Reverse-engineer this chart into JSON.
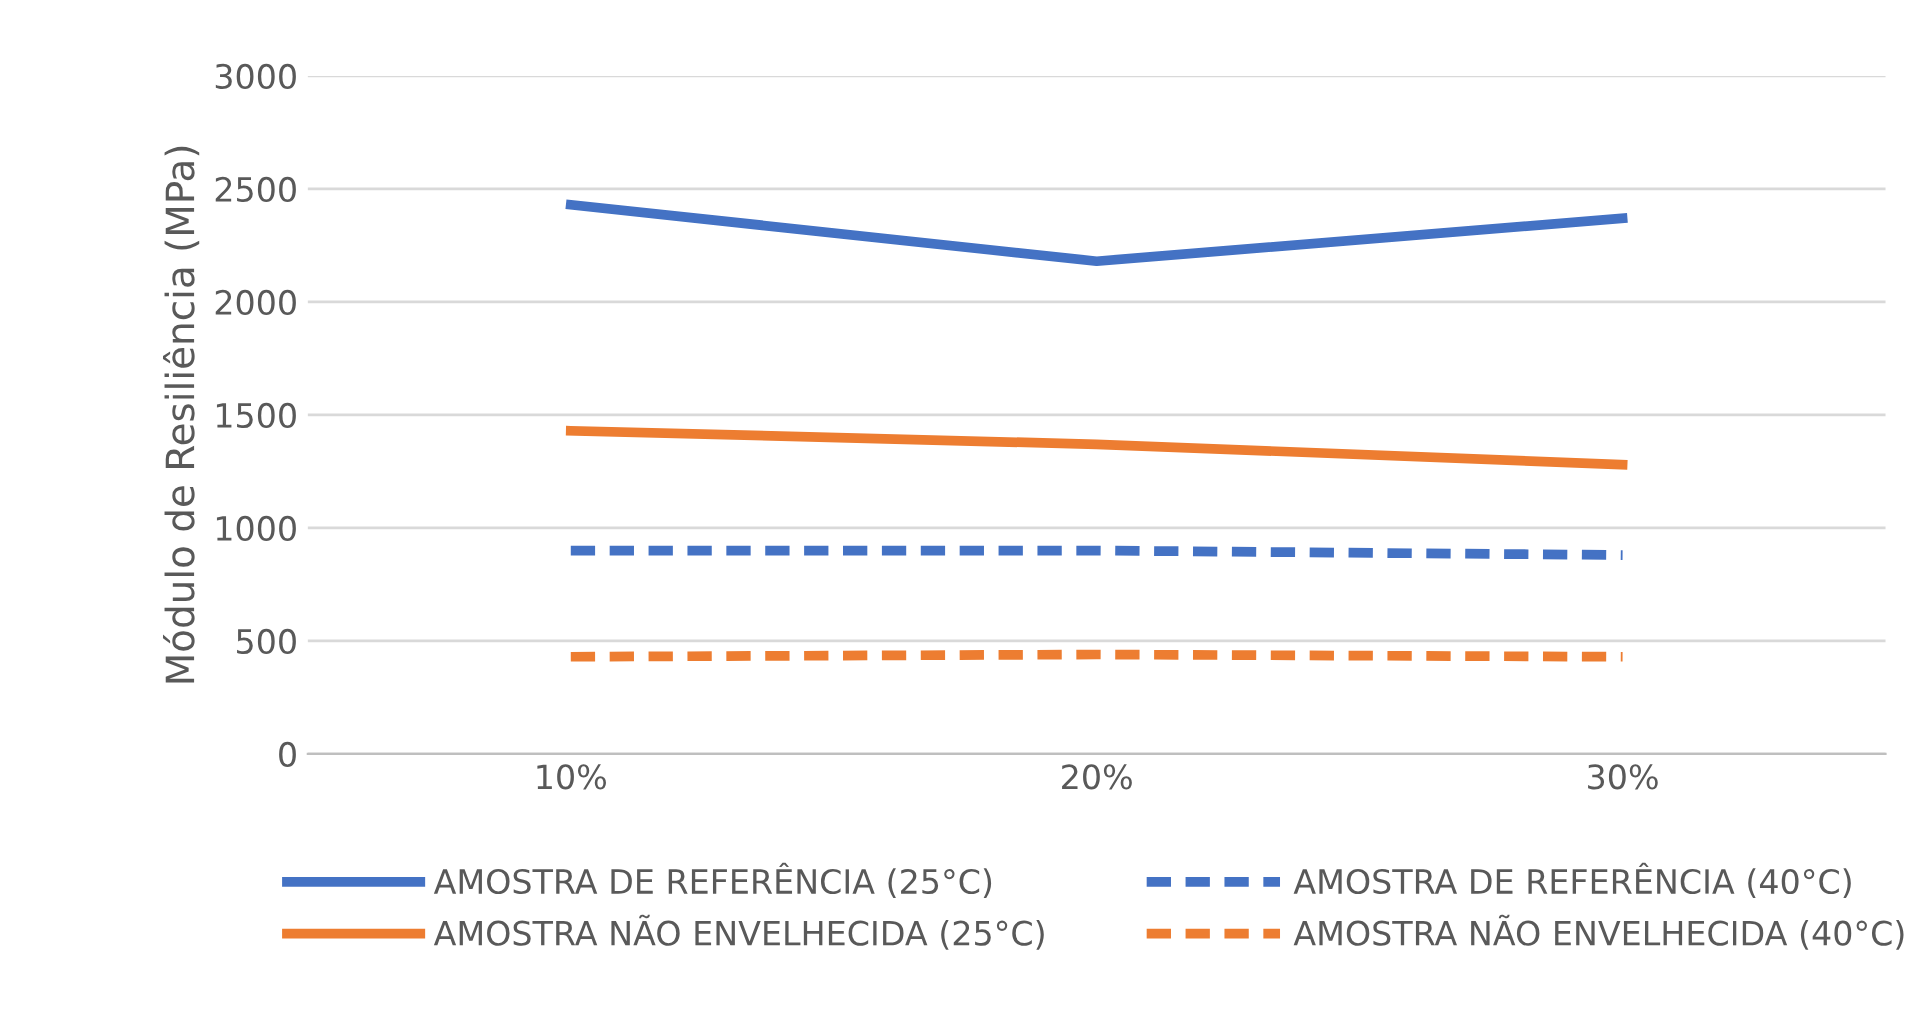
{
  "chart_data": {
    "type": "line",
    "ylabel": "Módulo de Resiliência (MPa)",
    "categories": [
      "10%",
      "20%",
      "30%"
    ],
    "series": [
      {
        "name": "AMOSTRA DE REFERÊNCIA (25°C)",
        "color": "#4472c4",
        "values": [
          2430,
          2180,
          2370
        ],
        "line_style": "solid"
      },
      {
        "name": "AMOSTRA DE REFERÊNCIA (40°C)",
        "color": "#4472c4",
        "values": [
          900,
          900,
          880
        ],
        "line_style": "dashed"
      },
      {
        "name": "AMOSTRA NÃO ENVELHECIDA (25°C)",
        "color": "#ed7d31",
        "values": [
          1430,
          1370,
          1280
        ],
        "line_style": "solid"
      },
      {
        "name": "AMOSTRA NÃO ENVELHECIDA (40°C)",
        "color": "#ed7d31",
        "values": [
          430,
          440,
          430
        ],
        "line_style": "dashed"
      }
    ],
    "ylim": [
      0,
      3000
    ],
    "yticks": [
      0,
      500,
      1000,
      1500,
      2000,
      2500,
      3000
    ],
    "grid": "y",
    "legend": "bottom",
    "marker": "none"
  }
}
